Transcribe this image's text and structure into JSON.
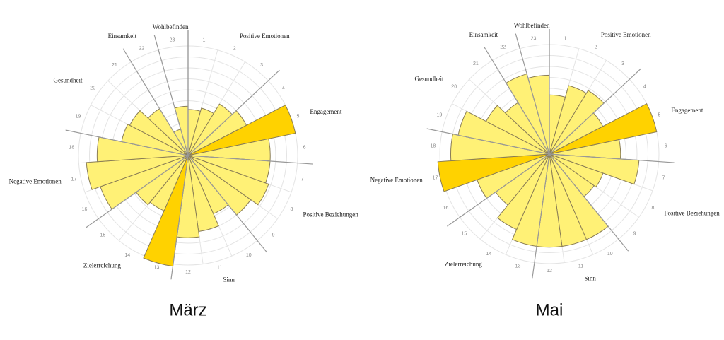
{
  "chart_data": [
    {
      "type": "rose",
      "caption": "März",
      "categories": [
        "1",
        "2",
        "3",
        "4",
        "5",
        "6",
        "7",
        "8",
        "9",
        "10",
        "11",
        "12",
        "13",
        "14",
        "15",
        "16",
        "17",
        "18",
        "19",
        "20",
        "21",
        "22",
        "23"
      ],
      "values": [
        4.2,
        4.5,
        5.5,
        6.0,
        10.0,
        7.5,
        7.5,
        7.8,
        7.0,
        5.8,
        7.0,
        7.5,
        10.2,
        5.5,
        5.8,
        8.5,
        9.3,
        8.3,
        6.2,
        6.0,
        5.0,
        2.5,
        4.5
      ],
      "colors": [
        "#fff176",
        "#fff176",
        "#fff176",
        "#fff176",
        "#ffd200",
        "#fff176",
        "#fff176",
        "#fff176",
        "#fff176",
        "#fff176",
        "#fff176",
        "#fff176",
        "#ffd200",
        "#fff176",
        "#fff176",
        "#fff176",
        "#fff176",
        "#fff176",
        "#fff176",
        "#fff176",
        "#fff176",
        "#fff176",
        "#fff176"
      ],
      "groups": [
        {
          "name": "Positive Emotionen",
          "size": 3
        },
        {
          "name": "Engagement",
          "size": 3
        },
        {
          "name": "Positive Beziehungen",
          "size": 3
        },
        {
          "name": "Sinn",
          "size": 3
        },
        {
          "name": "Zielerreichung",
          "size": 3
        },
        {
          "name": "Negative Emotionen",
          "size": 3
        },
        {
          "name": "Gesundheit",
          "size": 3
        },
        {
          "name": "Einsamkeit",
          "size": 1
        },
        {
          "name": "Wohlbefinden",
          "size": 1
        }
      ],
      "rlim": [
        0,
        10
      ],
      "rticks": [
        1,
        2,
        3,
        4,
        5,
        6,
        7,
        8,
        9,
        10
      ]
    },
    {
      "type": "rose",
      "caption": "Mai",
      "categories": [
        "1",
        "2",
        "3",
        "4",
        "5",
        "6",
        "7",
        "8",
        "9",
        "10",
        "11",
        "12",
        "13",
        "14",
        "15",
        "16",
        "17",
        "18",
        "19",
        "20",
        "21",
        "22",
        "23"
      ],
      "values": [
        5.4,
        6.5,
        6.8,
        5.5,
        10.0,
        6.5,
        8.2,
        5.2,
        5.0,
        8.5,
        8.5,
        8.5,
        8.5,
        7.5,
        6.0,
        7.0,
        10.2,
        9.0,
        8.5,
        6.5,
        5.5,
        7.6,
        7.2
      ],
      "colors": [
        "#fff176",
        "#fff176",
        "#fff176",
        "#fff176",
        "#ffd200",
        "#fff176",
        "#fff176",
        "#fff176",
        "#fff176",
        "#fff176",
        "#fff176",
        "#fff176",
        "#fff176",
        "#fff176",
        "#fff176",
        "#fff176",
        "#ffd200",
        "#fff176",
        "#fff176",
        "#fff176",
        "#fff176",
        "#fff176",
        "#fff176"
      ],
      "groups": [
        {
          "name": "Positive Emotionen",
          "size": 3
        },
        {
          "name": "Engagement",
          "size": 3
        },
        {
          "name": "Positive Beziehungen",
          "size": 3
        },
        {
          "name": "Sinn",
          "size": 3
        },
        {
          "name": "Zielerreichung",
          "size": 3
        },
        {
          "name": "Negative Emotionen",
          "size": 3
        },
        {
          "name": "Gesundheit",
          "size": 3
        },
        {
          "name": "Einsamkeit",
          "size": 1
        },
        {
          "name": "Wohlbefinden",
          "size": 1
        }
      ],
      "rlim": [
        0,
        10
      ],
      "rticks": [
        1,
        2,
        3,
        4,
        5,
        6,
        7,
        8,
        9,
        10
      ]
    }
  ]
}
